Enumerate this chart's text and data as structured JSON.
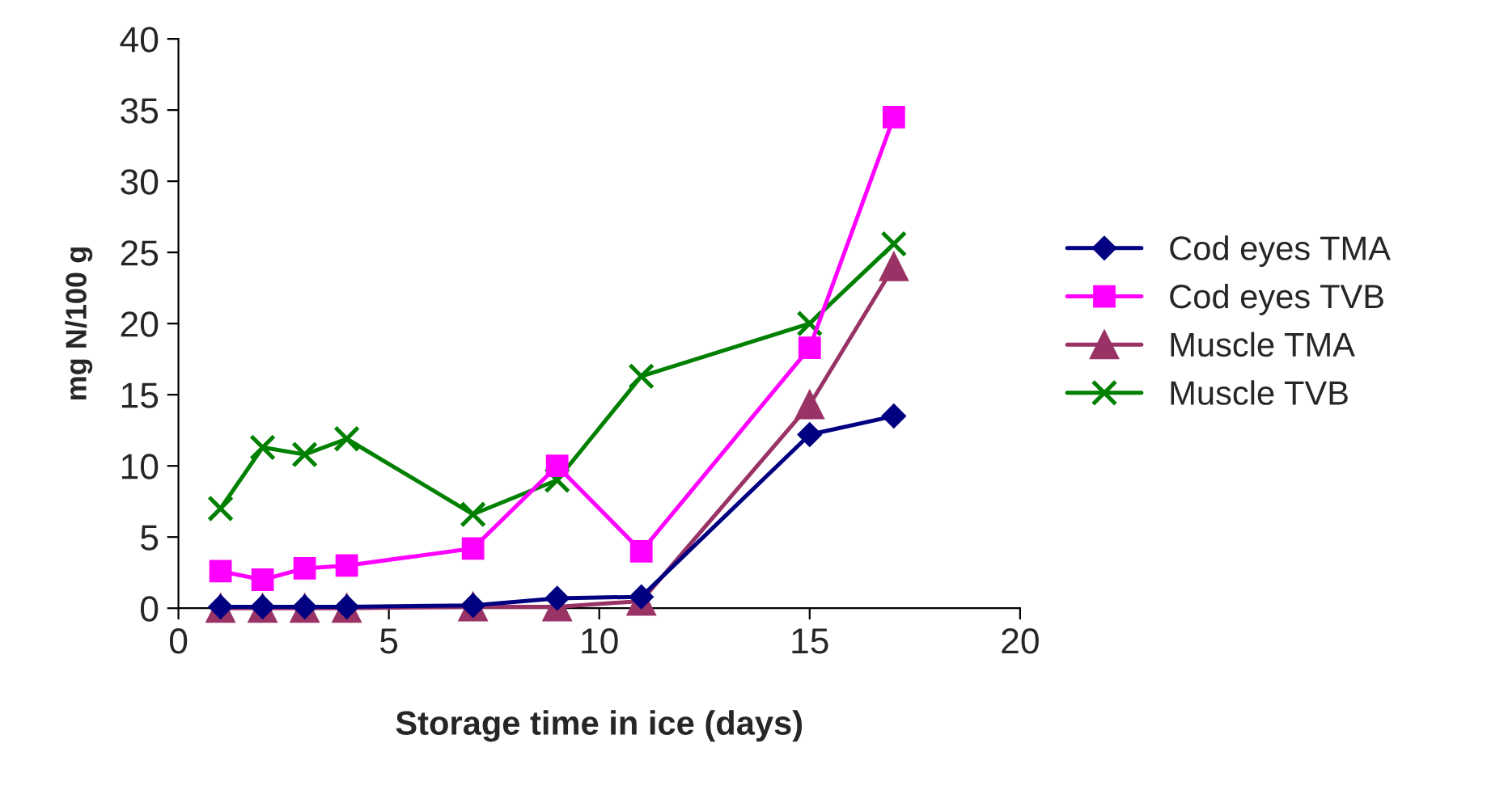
{
  "chart_data": {
    "type": "line",
    "xlabel": "Storage time in ice (days)",
    "ylabel": "mg N/100 g",
    "x": [
      1,
      2,
      3,
      4,
      7,
      9,
      11,
      15,
      17
    ],
    "series": [
      {
        "name": "Cod eyes TMA",
        "color": "#000080",
        "marker": "diamond",
        "values": [
          0.1,
          0.1,
          0.1,
          0.1,
          0.2,
          0.7,
          0.8,
          12.2,
          13.5
        ]
      },
      {
        "name": "Cod eyes TVB",
        "color": "#ff00ff",
        "marker": "square",
        "values": [
          2.6,
          2.0,
          2.8,
          3.0,
          4.2,
          10.0,
          4.0,
          18.3,
          34.5
        ]
      },
      {
        "name": "Muscle TMA",
        "color": "#993366",
        "marker": "triangle",
        "values": [
          0.0,
          0.0,
          0.0,
          0.0,
          0.1,
          0.1,
          0.5,
          14.3,
          24.0
        ]
      },
      {
        "name": "Muscle TVB",
        "color": "#008000",
        "marker": "cross",
        "values": [
          7.0,
          11.3,
          10.8,
          11.9,
          6.6,
          9.0,
          16.3,
          20.0,
          25.6
        ]
      }
    ],
    "xlim": [
      0,
      20
    ],
    "xticks": [
      0,
      5,
      10,
      15,
      20
    ],
    "ylim": [
      0,
      40
    ],
    "yticks": [
      0,
      5,
      10,
      15,
      20,
      25,
      30,
      35,
      40
    ],
    "grid": false,
    "legend": "right",
    "line_style": "solid"
  }
}
